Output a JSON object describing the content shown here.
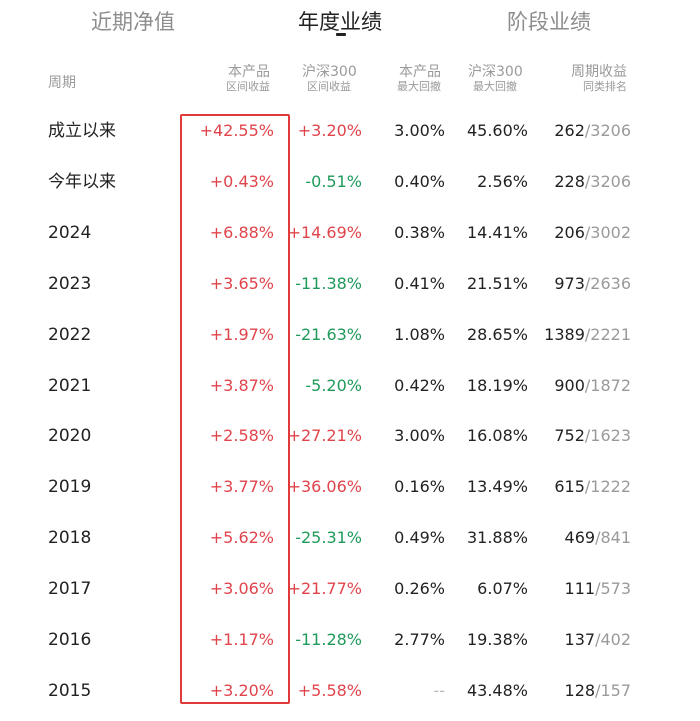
{
  "tabs": [
    {
      "label": "近期净值",
      "active": false
    },
    {
      "label": "年度业绩",
      "active": true
    },
    {
      "label": "阶段业绩",
      "active": false
    }
  ],
  "columns": {
    "period": "周期",
    "product_return": {
      "line1": "本产品",
      "line2": "区间收益"
    },
    "hs300_return": {
      "line1": "沪深300",
      "line2": "区间收益"
    },
    "product_mdd": {
      "line1": "本产品",
      "line2": "最大回撤"
    },
    "hs300_mdd": {
      "line1": "沪深300",
      "line2": "最大回撤"
    },
    "rank": {
      "line1": "周期收益",
      "line2": "同类排名"
    }
  },
  "rows": [
    {
      "period": "成立以来",
      "product": "+42.55%",
      "hs300": "+3.20%",
      "mdd": "3.00%",
      "hs300_mdd": "45.60%",
      "rank": "262",
      "total": "/3206"
    },
    {
      "period": "今年以来",
      "product": "+0.43%",
      "hs300": "-0.51%",
      "mdd": "0.40%",
      "hs300_mdd": "2.56%",
      "rank": "228",
      "total": "/3206"
    },
    {
      "period": "2024",
      "product": "+6.88%",
      "hs300": "+14.69%",
      "mdd": "0.38%",
      "hs300_mdd": "14.41%",
      "rank": "206",
      "total": "/3002"
    },
    {
      "period": "2023",
      "product": "+3.65%",
      "hs300": "-11.38%",
      "mdd": "0.41%",
      "hs300_mdd": "21.51%",
      "rank": "973",
      "total": "/2636"
    },
    {
      "period": "2022",
      "product": "+1.97%",
      "hs300": "-21.63%",
      "mdd": "1.08%",
      "hs300_mdd": "28.65%",
      "rank": "1389",
      "total": "/2221"
    },
    {
      "period": "2021",
      "product": "+3.87%",
      "hs300": "-5.20%",
      "mdd": "0.42%",
      "hs300_mdd": "18.19%",
      "rank": "900",
      "total": "/1872"
    },
    {
      "period": "2020",
      "product": "+2.58%",
      "hs300": "+27.21%",
      "mdd": "3.00%",
      "hs300_mdd": "16.08%",
      "rank": "752",
      "total": "/1623"
    },
    {
      "period": "2019",
      "product": "+3.77%",
      "hs300": "+36.06%",
      "mdd": "0.16%",
      "hs300_mdd": "13.49%",
      "rank": "615",
      "total": "/1222"
    },
    {
      "period": "2018",
      "product": "+5.62%",
      "hs300": "-25.31%",
      "mdd": "0.49%",
      "hs300_mdd": "31.88%",
      "rank": "469",
      "total": "/841"
    },
    {
      "period": "2017",
      "product": "+3.06%",
      "hs300": "+21.77%",
      "mdd": "0.26%",
      "hs300_mdd": "6.07%",
      "rank": "111",
      "total": "/573"
    },
    {
      "period": "2016",
      "product": "+1.17%",
      "hs300": "-11.28%",
      "mdd": "2.77%",
      "hs300_mdd": "19.38%",
      "rank": "137",
      "total": "/402"
    },
    {
      "period": "2015",
      "product": "+3.20%",
      "hs300": "+5.58%",
      "mdd": "--",
      "hs300_mdd": "43.48%",
      "rank": "128",
      "total": "/157"
    }
  ],
  "colors": {
    "positive": "#e0444b",
    "negative": "#1f9a5a",
    "highlight_border": "#e03a3a"
  }
}
